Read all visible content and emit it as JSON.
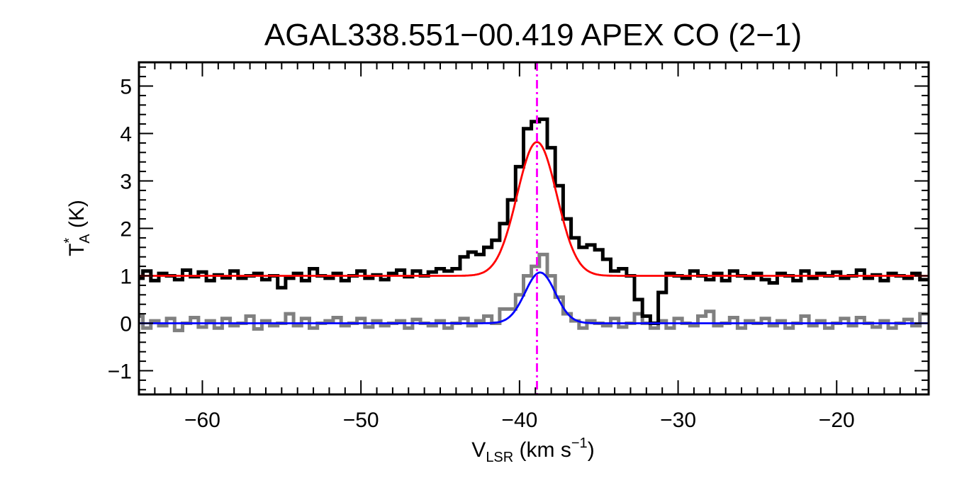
{
  "chart_data": {
    "type": "line",
    "title": "AGAL338.551−00.419  APEX CO (2−1)",
    "xlabel": {
      "main": "V",
      "sub": "LSR",
      "rest": " (km s",
      "sup": "−1",
      "close": ")"
    },
    "ylabel": {
      "main": "T",
      "sup": "*",
      "sub": "A",
      "rest": " (K)"
    },
    "xlim": [
      -64,
      -14.2
    ],
    "ylim": [
      -1.5,
      5.5
    ],
    "x_ticks": [
      -60,
      -50,
      -40,
      -30,
      -20
    ],
    "x_tick_labels": [
      "−60",
      "−50",
      "−40",
      "−30",
      "−20"
    ],
    "y_ticks": [
      -1,
      0,
      1,
      2,
      3,
      4,
      5
    ],
    "y_tick_labels": [
      "−1",
      "0",
      "1",
      "2",
      "3",
      "4",
      "5"
    ],
    "grid": false,
    "vline": {
      "x": -38.9,
      "color": "#ff00ff",
      "style": "dash-dot"
    },
    "series": [
      {
        "role": "observed-offset",
        "color": "#000000",
        "style": "steps",
        "offset": 1.0,
        "x": [
          -64.0,
          -63.5,
          -63.0,
          -62.5,
          -62.0,
          -61.5,
          -61.0,
          -60.5,
          -60.0,
          -59.5,
          -59.0,
          -58.5,
          -58.0,
          -57.5,
          -57.0,
          -56.5,
          -56.0,
          -55.5,
          -55.0,
          -54.5,
          -54.0,
          -53.5,
          -53.0,
          -52.5,
          -52.0,
          -51.5,
          -51.0,
          -50.5,
          -50.0,
          -49.5,
          -49.0,
          -48.5,
          -48.0,
          -47.5,
          -47.0,
          -46.5,
          -46.0,
          -45.5,
          -45.0,
          -44.5,
          -44.0,
          -43.5,
          -43.0,
          -42.5,
          -42.0,
          -41.5,
          -41.0,
          -40.5,
          -40.0,
          -39.5,
          -39.0,
          -38.5,
          -38.0,
          -37.5,
          -37.0,
          -36.5,
          -36.0,
          -35.5,
          -35.0,
          -34.5,
          -34.0,
          -33.5,
          -33.0,
          -32.5,
          -32.0,
          -31.5,
          -31.0,
          -30.5,
          -30.0,
          -29.5,
          -29.0,
          -28.5,
          -28.0,
          -27.5,
          -27.0,
          -26.5,
          -26.0,
          -25.5,
          -25.0,
          -24.5,
          -24.0,
          -23.5,
          -23.0,
          -22.5,
          -22.0,
          -21.5,
          -21.0,
          -20.5,
          -20.0,
          -19.5,
          -19.0,
          -18.5,
          -18.0,
          -17.5,
          -17.0,
          -16.5,
          -16.0,
          -15.5,
          -15.0,
          -14.5
        ],
        "y": [
          0.95,
          1.1,
          0.9,
          1.05,
          1.0,
          0.92,
          1.12,
          0.98,
          1.08,
          0.9,
          1.02,
          0.96,
          1.1,
          0.95,
          1.0,
          1.05,
          0.92,
          1.0,
          0.75,
          0.95,
          1.05,
          0.9,
          1.15,
          1.0,
          0.95,
          1.05,
          0.9,
          1.0,
          1.1,
          0.95,
          1.02,
          0.92,
          1.05,
          1.12,
          0.98,
          1.1,
          1.0,
          1.08,
          1.15,
          1.1,
          1.15,
          1.4,
          1.5,
          1.45,
          1.6,
          1.75,
          2.1,
          2.6,
          3.3,
          4.1,
          4.25,
          4.3,
          3.7,
          2.9,
          2.2,
          1.8,
          1.6,
          1.65,
          1.55,
          1.35,
          1.1,
          1.15,
          1.0,
          0.5,
          0.15,
          0.0,
          0.65,
          1.05,
          1.0,
          0.95,
          1.1,
          1.0,
          0.92,
          1.05,
          0.9,
          1.1,
          1.0,
          0.95,
          1.05,
          0.92,
          0.85,
          1.05,
          1.0,
          0.9,
          1.1,
          0.95,
          1.05,
          1.0,
          1.08,
          0.95,
          1.0,
          1.12,
          0.95,
          1.02,
          0.9,
          1.05,
          1.0,
          0.95,
          1.05,
          0.92
        ]
      },
      {
        "role": "observed",
        "color": "#808080",
        "style": "steps",
        "x": [
          -64.0,
          -63.5,
          -63.0,
          -62.5,
          -62.0,
          -61.5,
          -61.0,
          -60.5,
          -60.0,
          -59.5,
          -59.0,
          -58.5,
          -58.0,
          -57.5,
          -57.0,
          -56.5,
          -56.0,
          -55.5,
          -55.0,
          -54.5,
          -54.0,
          -53.5,
          -53.0,
          -52.5,
          -52.0,
          -51.5,
          -51.0,
          -50.5,
          -50.0,
          -49.5,
          -49.0,
          -48.5,
          -48.0,
          -47.5,
          -47.0,
          -46.5,
          -46.0,
          -45.5,
          -45.0,
          -44.5,
          -44.0,
          -43.5,
          -43.0,
          -42.5,
          -42.0,
          -41.5,
          -41.0,
          -40.5,
          -40.0,
          -39.5,
          -39.0,
          -38.5,
          -38.0,
          -37.5,
          -37.0,
          -36.5,
          -36.0,
          -35.5,
          -35.0,
          -34.5,
          -34.0,
          -33.5,
          -33.0,
          -32.5,
          -32.0,
          -31.5,
          -31.0,
          -30.5,
          -30.0,
          -29.5,
          -29.0,
          -28.5,
          -28.0,
          -27.5,
          -27.0,
          -26.5,
          -26.0,
          -25.5,
          -25.0,
          -24.5,
          -24.0,
          -23.5,
          -23.0,
          -22.5,
          -22.0,
          -21.5,
          -21.0,
          -20.5,
          -20.0,
          -19.5,
          -19.0,
          -18.5,
          -18.0,
          -17.5,
          -17.0,
          -16.5,
          -16.0,
          -15.5,
          -15.0,
          -14.5
        ],
        "y": [
          0.15,
          -0.1,
          0.05,
          -0.05,
          0.1,
          -0.15,
          0.0,
          0.12,
          -0.08,
          0.05,
          -0.1,
          0.1,
          -0.05,
          0.0,
          0.15,
          -0.12,
          0.05,
          -0.05,
          0.0,
          0.2,
          -0.05,
          0.1,
          -0.1,
          0.0,
          0.05,
          0.12,
          -0.05,
          0.0,
          0.1,
          -0.08,
          0.05,
          -0.05,
          0.0,
          0.05,
          -0.1,
          0.08,
          0.0,
          -0.05,
          0.05,
          -0.1,
          0.0,
          0.1,
          -0.05,
          0.05,
          0.15,
          0.0,
          0.3,
          0.3,
          0.6,
          1.0,
          1.2,
          1.45,
          1.0,
          0.55,
          0.2,
          0.05,
          -0.1,
          0.05,
          0.0,
          -0.05,
          0.1,
          -0.08,
          0.0,
          0.2,
          0.0,
          -0.1,
          0.05,
          -0.1,
          0.1,
          0.0,
          -0.05,
          0.15,
          0.25,
          -0.05,
          0.0,
          0.12,
          -0.1,
          0.05,
          0.0,
          0.1,
          -0.05,
          0.05,
          -0.1,
          0.0,
          0.15,
          -0.05,
          0.05,
          -0.1,
          0.0,
          0.1,
          -0.05,
          0.12,
          0.0,
          -0.08,
          0.05,
          -0.1,
          0.0,
          0.08,
          -0.05,
          0.2
        ]
      },
      {
        "role": "gaussian-fit-offset",
        "color": "#ff0000",
        "style": "line",
        "model": {
          "amplitude": 2.82,
          "center": -38.9,
          "sigma": 1.25,
          "baseline": 1.0
        }
      },
      {
        "role": "gaussian-fit",
        "color": "#0000ff",
        "style": "line",
        "model": {
          "amplitude": 1.07,
          "center": -38.7,
          "sigma": 0.95,
          "baseline": 0.0
        }
      }
    ]
  }
}
